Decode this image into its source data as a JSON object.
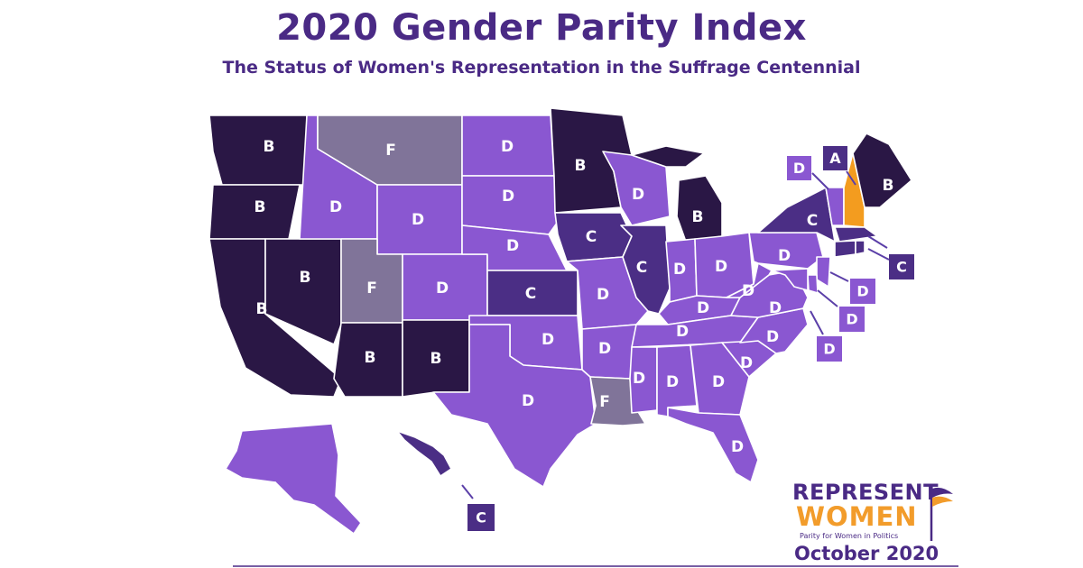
{
  "title": "2020 Gender Parity Index",
  "subtitle": "The Status of Women's Representation in the Suffrage Centennial",
  "colors": {
    "A": "#f39c1f",
    "B": "#2a1745",
    "C": "#4b2e85",
    "D": "#8a57d1",
    "F": "#807499",
    "text": "#4a2a85"
  },
  "states": {
    "WA": "B",
    "OR": "B",
    "CA": "B",
    "NV": "B",
    "ID": "D",
    "MT": "F",
    "WY": "D",
    "UT": "F",
    "AZ": "B",
    "CO": "D",
    "NM": "B",
    "ND": "D",
    "SD": "D",
    "NE": "D",
    "KS": "C",
    "OK": "D",
    "TX": "D",
    "MN": "B",
    "IA": "C",
    "MO": "D",
    "AR": "D",
    "LA": "F",
    "WI": "D",
    "IL": "C",
    "MI": "B",
    "IN": "D",
    "OH": "D",
    "KY": "D",
    "TN": "D",
    "MS": "D",
    "AL": "D",
    "GA": "D",
    "FL": "D",
    "SC": "D",
    "NC": "D",
    "VA": "D",
    "WV": "D",
    "PA": "D",
    "NY": "C",
    "VT": "D",
    "NH": "A",
    "ME": "B",
    "MA": "C",
    "RI": "C",
    "CT": "C",
    "NJ": "D",
    "DE": "D",
    "MD": "D",
    "AK": "D",
    "HI": "C"
  },
  "callouts": [
    {
      "name": "VT",
      "grade": "D"
    },
    {
      "name": "NH",
      "grade": "A"
    },
    {
      "name": "MA-RI",
      "grade": "C"
    },
    {
      "name": "NJ",
      "grade": "D"
    },
    {
      "name": "DE",
      "grade": "D"
    },
    {
      "name": "MD",
      "grade": "D"
    },
    {
      "name": "HI",
      "grade": "C"
    }
  ],
  "logo": {
    "line1": "REPRESENT",
    "line2": "WOMEN",
    "tagline": "Parity for Women in Politics",
    "date": "October 2020"
  }
}
